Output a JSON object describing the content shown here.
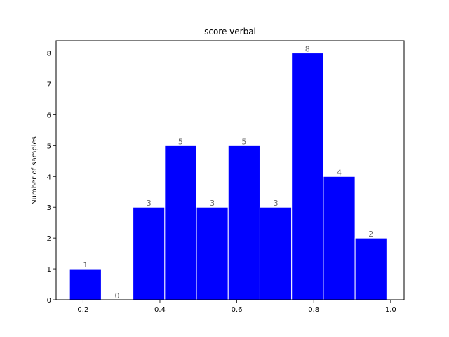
{
  "chart_data": {
    "type": "bar",
    "title": "score verbal",
    "xlabel": "",
    "ylabel": "Number of samples",
    "bin_edges": [
      0.165,
      0.2475,
      0.33,
      0.4125,
      0.495,
      0.5775,
      0.66,
      0.7425,
      0.825,
      0.9075,
      0.99
    ],
    "values": [
      1,
      0,
      3,
      5,
      3,
      5,
      3,
      8,
      4,
      2
    ],
    "data_labels": [
      "1",
      "0",
      "3",
      "5",
      "3",
      "5",
      "3",
      "8",
      "4",
      "2"
    ],
    "xlim": [
      0.13,
      1.035
    ],
    "ylim": [
      0,
      8.4
    ],
    "xticks": [
      0.2,
      0.4,
      0.6,
      0.8,
      1.0
    ],
    "xtick_labels": [
      "0.2",
      "0.4",
      "0.6",
      "0.8",
      "1.0"
    ],
    "yticks": [
      0,
      1,
      2,
      3,
      4,
      5,
      6,
      7,
      8
    ],
    "ytick_labels": [
      "0",
      "1",
      "2",
      "3",
      "4",
      "5",
      "6",
      "7",
      "8"
    ],
    "grid": false,
    "colors": {
      "bar": "#0000ff",
      "bar_edge": "#ffffff",
      "data_label": "#666666"
    }
  }
}
